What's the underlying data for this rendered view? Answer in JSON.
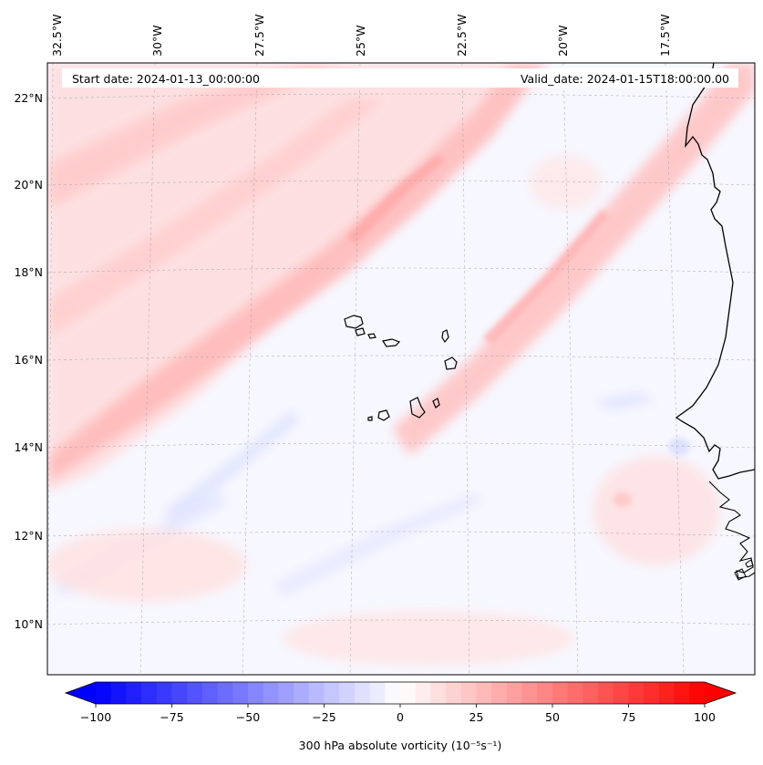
{
  "header": {
    "start_label": "Start date: 2024-01-13_00:00:00",
    "valid_label": "Valid_date: 2024-01-15T18:00:00.00"
  },
  "map": {
    "region": "Cape Verde / West Africa",
    "lon_labels": [
      "32.5°W",
      "30°W",
      "27.5°W",
      "25°W",
      "22.5°W",
      "20°W",
      "17.5°W"
    ],
    "lat_labels": [
      "22°N",
      "20°N",
      "18°N",
      "16°N",
      "14°N",
      "12°N",
      "10°N"
    ]
  },
  "colorbar": {
    "label": "300 hPa absolute vorticity (10⁻⁵s⁻¹)",
    "ticks": [
      "−100",
      "−75",
      "−50",
      "−25",
      "0",
      "25",
      "50",
      "75",
      "100"
    ],
    "vmin": -100,
    "vmax": 100,
    "colors": {
      "negative": "#0000ff",
      "zero": "#ffffff",
      "positive": "#ff0000"
    }
  }
}
